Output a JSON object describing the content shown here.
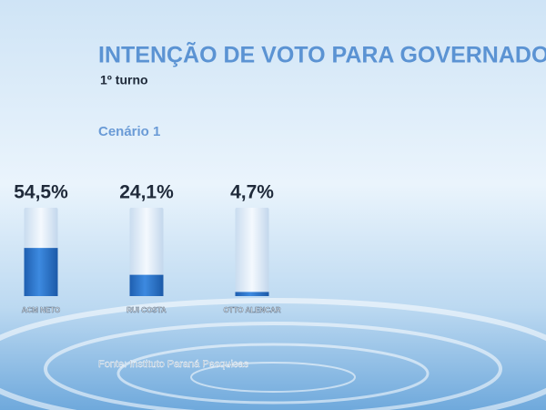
{
  "chart_data": {
    "type": "bar",
    "title": "INTENÇÃO DE VOTO PARA GOVERNADOR",
    "subtitle": "1º turno",
    "scenario": "Cenário 1",
    "categories": [
      "ACM NETO",
      "RUI COSTA",
      "OTTO ALENCAR"
    ],
    "values": [
      54.5,
      24.1,
      4.7
    ],
    "value_labels": [
      "54,5%",
      "24,1%",
      "4,7%"
    ],
    "color": "#2f74c8",
    "ylim": [
      0,
      100
    ],
    "source": "Fonte: Instituto Paraná Pesquisas"
  }
}
